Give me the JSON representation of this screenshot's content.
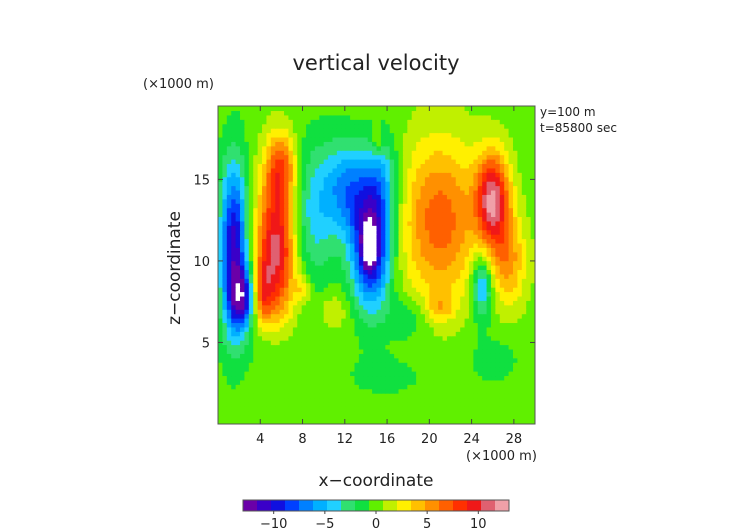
{
  "chart_data": {
    "type": "heatmap",
    "title": "vertical velocity",
    "xlabel": "x−coordinate",
    "ylabel": "z−coordinate",
    "x_unit": "(×1000 m)",
    "y_unit": "(×1000 m)",
    "annotations": [
      "y=100 m",
      "t=85800 sec"
    ],
    "xlim": [
      0,
      30
    ],
    "ylim": [
      0,
      19.5
    ],
    "x_ticks": [
      4,
      8,
      12,
      16,
      20,
      24,
      28
    ],
    "x_tick_labels": [
      "4",
      "8",
      "12",
      "16",
      "20",
      "24",
      "28"
    ],
    "y_ticks": [
      5,
      10,
      15
    ],
    "y_tick_labels": [
      "5",
      "10",
      "15"
    ],
    "colorbar": {
      "range": [
        -13,
        13
      ],
      "ticks": [
        -10,
        -5,
        0,
        5,
        10
      ],
      "tick_labels": [
        "−10",
        "−5",
        "0",
        "5",
        "10"
      ],
      "colors": [
        "#6a00a8",
        "#3a00c8",
        "#1010e0",
        "#0040ff",
        "#0080ff",
        "#00b0ff",
        "#20d0ff",
        "#30e070",
        "#10e040",
        "#60f000",
        "#c0f000",
        "#fff000",
        "#ffc000",
        "#ff9000",
        "#ff6000",
        "#ff3000",
        "#f01818",
        "#e06070",
        "#f0a0a8"
      ]
    },
    "field_features": [
      {
        "x": 1.5,
        "z": 10.8,
        "value": -11,
        "sx": 0.9,
        "sz": 3.6
      },
      {
        "x": 2.3,
        "z": 7.8,
        "value": -9,
        "sx": 0.8,
        "sz": 1.2
      },
      {
        "x": 5.5,
        "z": 10.8,
        "value": 11,
        "sx": 1.3,
        "sz": 3.2
      },
      {
        "x": 6.0,
        "z": 15.8,
        "value": 6,
        "sx": 1.0,
        "sz": 1.5
      },
      {
        "x": 4.2,
        "z": 8.0,
        "value": 5,
        "sx": 0.6,
        "sz": 1.4
      },
      {
        "x": 9.0,
        "z": 13.0,
        "value": -4,
        "sx": 1.6,
        "sz": 3.0
      },
      {
        "x": 14.5,
        "z": 11.0,
        "value": -12,
        "sx": 1.3,
        "sz": 2.6
      },
      {
        "x": 12.2,
        "z": 14.5,
        "value": -6,
        "sx": 1.5,
        "sz": 2.0
      },
      {
        "x": 15.5,
        "z": 15.0,
        "value": -4,
        "sx": 1.2,
        "sz": 2.0
      },
      {
        "x": 14.3,
        "z": 11.0,
        "value": -15,
        "sx": 0.35,
        "sz": 0.8
      },
      {
        "x": 21.0,
        "z": 12.5,
        "value": 7,
        "sx": 2.6,
        "sz": 3.5
      },
      {
        "x": 26.0,
        "z": 13.8,
        "value": 11,
        "sx": 1.1,
        "sz": 2.0
      },
      {
        "x": 27.5,
        "z": 10.0,
        "value": 5,
        "sx": 1.2,
        "sz": 2.0
      },
      {
        "x": 25.0,
        "z": 8.5,
        "value": -6,
        "sx": 0.7,
        "sz": 1.4
      },
      {
        "x": 21.0,
        "z": 7.2,
        "value": 3,
        "sx": 0.9,
        "sz": 0.6
      },
      {
        "x": 11.0,
        "z": 7.0,
        "value": 2,
        "sx": 1.0,
        "sz": 0.8
      },
      {
        "x": 8.0,
        "z": 8.3,
        "value": 3,
        "sx": 0.5,
        "sz": 0.6
      },
      {
        "x": 15.0,
        "z": 17.5,
        "value": 3,
        "sx": 0.4,
        "sz": 0.5
      },
      {
        "x": 18.0,
        "z": 6.5,
        "value": -2,
        "sx": 1.5,
        "sz": 1.0
      },
      {
        "x": 5.0,
        "z": 5.0,
        "value": -1.5,
        "sx": 2.0,
        "sz": 1.2
      },
      {
        "x": 16.0,
        "z": 3.0,
        "value": -1.2,
        "sx": 3.0,
        "sz": 1.0
      },
      {
        "x": 26.0,
        "z": 4.0,
        "value": -1.3,
        "sx": 2.0,
        "sz": 1.2
      }
    ]
  }
}
